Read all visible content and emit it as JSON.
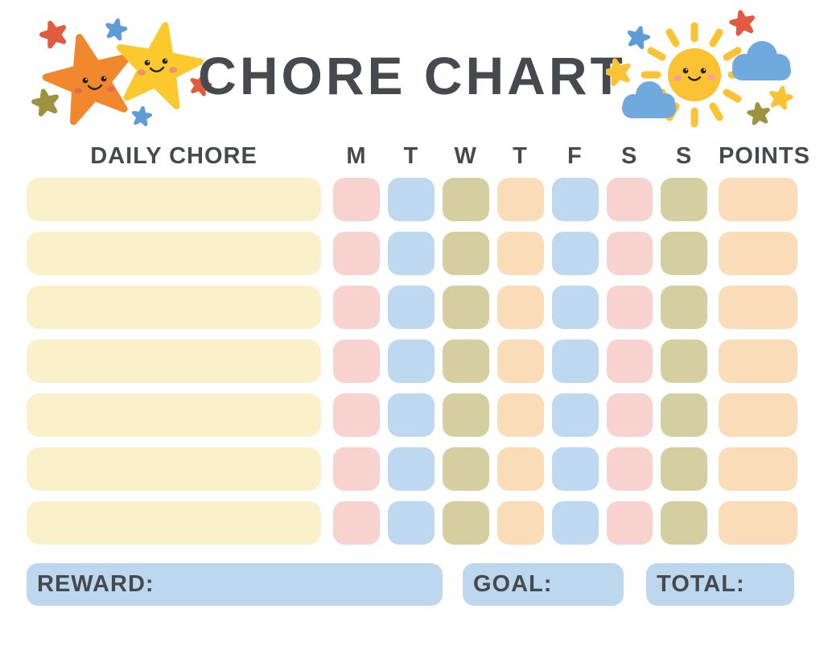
{
  "title": "CHORE CHART",
  "header": {
    "chore": "DAILY CHORE",
    "days": [
      "M",
      "T",
      "W",
      "T",
      "F",
      "S",
      "S"
    ],
    "points": "POINTS"
  },
  "rows": [
    {
      "chore": "",
      "days": [
        "",
        "",
        "",
        "",
        "",
        "",
        ""
      ],
      "points": ""
    },
    {
      "chore": "",
      "days": [
        "",
        "",
        "",
        "",
        "",
        "",
        ""
      ],
      "points": ""
    },
    {
      "chore": "",
      "days": [
        "",
        "",
        "",
        "",
        "",
        "",
        ""
      ],
      "points": ""
    },
    {
      "chore": "",
      "days": [
        "",
        "",
        "",
        "",
        "",
        "",
        ""
      ],
      "points": ""
    },
    {
      "chore": "",
      "days": [
        "",
        "",
        "",
        "",
        "",
        "",
        ""
      ],
      "points": ""
    },
    {
      "chore": "",
      "days": [
        "",
        "",
        "",
        "",
        "",
        "",
        ""
      ],
      "points": ""
    },
    {
      "chore": "",
      "days": [
        "",
        "",
        "",
        "",
        "",
        "",
        ""
      ],
      "points": ""
    }
  ],
  "footer": {
    "reward": "REWARD:",
    "goal": "GOAL:",
    "total": "TOTAL:"
  },
  "colors": {
    "text": "#46494e",
    "cream": "#faf0c9",
    "pink": "#f8d2ce",
    "blue": "#bdd8ef",
    "olive": "#d4cea1",
    "peach": "#fbdcb9",
    "footer_blue": "#bcd7ee",
    "star_orange": "#f1882e",
    "star_yellow": "#fbc92d",
    "small_red": "#e35b3e",
    "small_blue": "#5d9cd6",
    "small_olive": "#9c9240",
    "cloud_blue": "#70a9dd",
    "sun_yellow": "#fbc233"
  },
  "day_cell_colors": [
    "pink",
    "blue",
    "olive",
    "peach",
    "blue",
    "pink",
    "olive"
  ],
  "decorations": {
    "left": "twin-smiling-stars",
    "right": "smiling-sun-with-clouds"
  }
}
